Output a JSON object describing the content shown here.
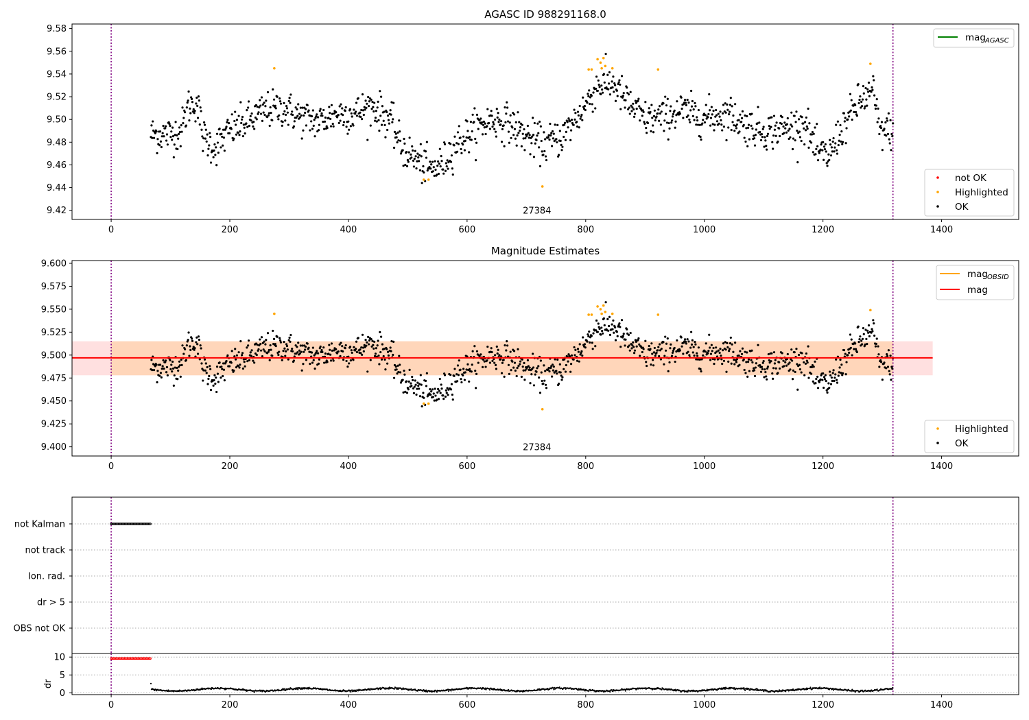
{
  "chart_data": [
    {
      "type": "scatter",
      "name_key": "agasc",
      "title": "AGASC ID 988291168.0",
      "xlim": [
        -66,
        1530
      ],
      "ylim": [
        9.412,
        9.584
      ],
      "xticks": [
        0,
        200,
        400,
        600,
        800,
        1000,
        1200,
        1400
      ],
      "yticks": [
        "9.42",
        "9.44",
        "9.46",
        "9.48",
        "9.50",
        "9.52",
        "9.54",
        "9.56",
        "9.58"
      ],
      "annotation": {
        "text": "27384",
        "x": 660,
        "y": 9.42
      },
      "vlines_x": [
        0,
        1318
      ],
      "legend_upper": {
        "placement": "top-right",
        "entries": [
          {
            "label": "mag",
            "subscript": "AGASC",
            "color": "#008000"
          }
        ]
      },
      "legend_lower": {
        "placement": "bottom-right",
        "entries": [
          {
            "label": "not OK",
            "color": "#ff0000"
          },
          {
            "label": "Highlighted",
            "color": "#ffa500"
          },
          {
            "label": "OK",
            "color": "#000000"
          }
        ]
      },
      "mag_agasc_line": null,
      "highlighted_points": [
        {
          "x": 275,
          "y": 9.545
        },
        {
          "x": 527,
          "y": 9.447
        },
        {
          "x": 535,
          "y": 9.447
        },
        {
          "x": 727,
          "y": 9.441
        },
        {
          "x": 805,
          "y": 9.544
        },
        {
          "x": 810,
          "y": 9.544
        },
        {
          "x": 820,
          "y": 9.553
        },
        {
          "x": 825,
          "y": 9.55
        },
        {
          "x": 830,
          "y": 9.554
        },
        {
          "x": 833,
          "y": 9.547
        },
        {
          "x": 827,
          "y": 9.545
        },
        {
          "x": 845,
          "y": 9.545
        },
        {
          "x": 922,
          "y": 9.544
        },
        {
          "x": 1280,
          "y": 9.549
        }
      ],
      "ok_series": {
        "x_range": [
          67,
          1318
        ],
        "n_points": 1200,
        "description_key": "series follows profile below"
      },
      "ok_profile": [
        [
          67,
          9.487
        ],
        [
          100,
          9.487
        ],
        [
          118,
          9.49
        ],
        [
          130,
          9.512
        ],
        [
          145,
          9.515
        ],
        [
          155,
          9.485
        ],
        [
          175,
          9.475
        ],
        [
          200,
          9.49
        ],
        [
          230,
          9.498
        ],
        [
          260,
          9.508
        ],
        [
          290,
          9.51
        ],
        [
          320,
          9.502
        ],
        [
          350,
          9.498
        ],
        [
          380,
          9.505
        ],
        [
          410,
          9.505
        ],
        [
          440,
          9.512
        ],
        [
          470,
          9.5
        ],
        [
          490,
          9.475
        ],
        [
          520,
          9.462
        ],
        [
          540,
          9.455
        ],
        [
          560,
          9.462
        ],
        [
          580,
          9.478
        ],
        [
          610,
          9.49
        ],
        [
          640,
          9.5
        ],
        [
          670,
          9.497
        ],
        [
          700,
          9.485
        ],
        [
          730,
          9.478
        ],
        [
          760,
          9.485
        ],
        [
          790,
          9.505
        ],
        [
          820,
          9.53
        ],
        [
          845,
          9.532
        ],
        [
          870,
          9.515
        ],
        [
          900,
          9.5
        ],
        [
          930,
          9.502
        ],
        [
          960,
          9.508
        ],
        [
          1000,
          9.502
        ],
        [
          1040,
          9.505
        ],
        [
          1070,
          9.495
        ],
        [
          1100,
          9.49
        ],
        [
          1140,
          9.492
        ],
        [
          1170,
          9.497
        ],
        [
          1190,
          9.47
        ],
        [
          1210,
          9.468
        ],
        [
          1230,
          9.49
        ],
        [
          1260,
          9.515
        ],
        [
          1285,
          9.525
        ],
        [
          1295,
          9.49
        ],
        [
          1318,
          9.49
        ]
      ],
      "ok_spread": 0.018
    },
    {
      "type": "scatter",
      "name_key": "estimates",
      "title": "Magnitude Estimates",
      "xlim": [
        -66,
        1530
      ],
      "ylim": [
        9.39,
        9.603
      ],
      "xticks": [
        0,
        200,
        400,
        600,
        800,
        1000,
        1200,
        1400
      ],
      "yticks": [
        "9.400",
        "9.425",
        "9.450",
        "9.475",
        "9.500",
        "9.525",
        "9.550",
        "9.575",
        "9.600"
      ],
      "annotation": {
        "text": "27384",
        "x": 660,
        "y": 9.4
      },
      "vlines_x": [
        0,
        1318
      ],
      "mag_line": {
        "y": 9.497,
        "x_range": [
          -66,
          1385
        ],
        "color": "#ff0000"
      },
      "mag_band": {
        "y_range": [
          9.478,
          9.515
        ],
        "x_range": [
          -66,
          1385
        ],
        "color": "#ffcccc"
      },
      "obsid_band": {
        "y_range": [
          9.478,
          9.515
        ],
        "x_range": [
          0,
          1318
        ],
        "color": "#ffd3b0"
      },
      "legend_upper": {
        "placement": "top-right",
        "entries": [
          {
            "label": "mag",
            "subscript": "OBSID",
            "color": "#ffa500"
          },
          {
            "label": "mag",
            "subscript": "",
            "color": "#ff0000"
          }
        ]
      },
      "legend_lower": {
        "placement": "bottom-right",
        "entries": [
          {
            "label": "Highlighted",
            "color": "#ffa500"
          },
          {
            "label": "OK",
            "color": "#000000"
          }
        ]
      }
    },
    {
      "type": "scatter",
      "name_key": "flags",
      "categories": [
        "not Kalman",
        "not track",
        "Ion. rad.",
        "dr > 5",
        "OBS not OK"
      ],
      "xlim": [
        -66,
        1530
      ],
      "vlines_x": [
        0,
        1318
      ],
      "not_kalman_x_range": [
        0,
        67
      ],
      "dr_panel": {
        "ylabel": "dr",
        "ylim": [
          -0.5,
          11
        ],
        "yticks": [
          "0",
          "5",
          "10"
        ],
        "xticks": [
          0,
          200,
          400,
          600,
          800,
          1000,
          1200,
          1400
        ],
        "red_points": {
          "x_range": [
            0,
            67
          ],
          "y": 9.6
        },
        "black_series": {
          "x_range": [
            67,
            1318
          ],
          "mean": 0.9,
          "amplitude": 0.5,
          "start_value": 2.6
        }
      }
    }
  ]
}
